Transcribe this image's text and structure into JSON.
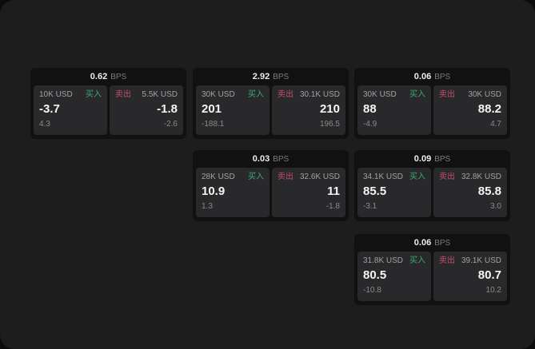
{
  "colors": {
    "backdrop": "#0c0c0c",
    "window_bg": "#1d1d1e",
    "card_bg": "#111112",
    "tile_bg": "#29292b",
    "buy_green": "#3fa872",
    "sell_red": "#c0506a",
    "value_white": "#f5f5f5",
    "label_gray": "#a2a2a2",
    "sub_gray": "#8a8a8a"
  },
  "cards": [
    {
      "bps_value": "0.62",
      "bps_label": "BPS",
      "buy": {
        "amount": "10K USD",
        "side_label": "买入",
        "value": "-3.7",
        "sub_value": "4.3"
      },
      "sell": {
        "amount": "5.5K USD",
        "side_label": "卖出",
        "value": "-1.8",
        "sub_value": "-2.6"
      }
    },
    {
      "bps_value": "2.92",
      "bps_label": "BPS",
      "buy": {
        "amount": "30K USD",
        "side_label": "买入",
        "value": "201",
        "sub_value": "-188.1"
      },
      "sell": {
        "amount": "30.1K USD",
        "side_label": "卖出",
        "value": "210",
        "sub_value": "196.5"
      }
    },
    {
      "bps_value": "0.06",
      "bps_label": "BPS",
      "buy": {
        "amount": "30K USD",
        "side_label": "买入",
        "value": "88",
        "sub_value": "-4.9"
      },
      "sell": {
        "amount": "30K USD",
        "side_label": "卖出",
        "value": "88.2",
        "sub_value": "4.7"
      }
    },
    {
      "bps_value": "0.03",
      "bps_label": "BPS",
      "buy": {
        "amount": "28K USD",
        "side_label": "买入",
        "value": "10.9",
        "sub_value": "1.3"
      },
      "sell": {
        "amount": "32.6K USD",
        "side_label": "卖出",
        "value": "11",
        "sub_value": "-1.8"
      }
    },
    {
      "bps_value": "0.09",
      "bps_label": "BPS",
      "buy": {
        "amount": "34.1K USD",
        "side_label": "买入",
        "value": "85.5",
        "sub_value": "-3.1"
      },
      "sell": {
        "amount": "32.8K USD",
        "side_label": "卖出",
        "value": "85.8",
        "sub_value": "3.0"
      }
    },
    {
      "bps_value": "0.06",
      "bps_label": "BPS",
      "buy": {
        "amount": "31.8K USD",
        "side_label": "买入",
        "value": "80.5",
        "sub_value": "-10.8"
      },
      "sell": {
        "amount": "39.1K USD",
        "side_label": "卖出",
        "value": "80.7",
        "sub_value": "10.2"
      }
    }
  ]
}
